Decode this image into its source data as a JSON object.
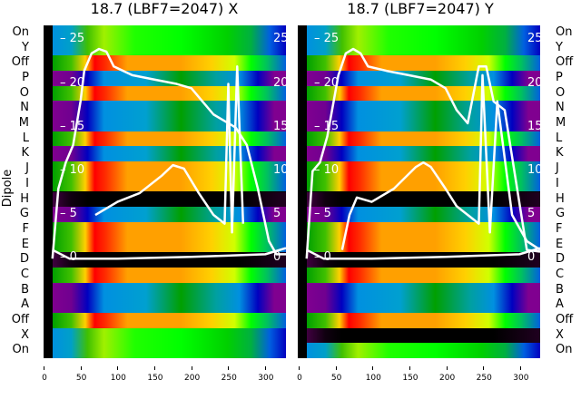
{
  "ylabel": "Dipole",
  "row_labels": [
    "On",
    "Y",
    "Off",
    "P",
    "O",
    "N",
    "M",
    "L",
    "K",
    "J",
    "I",
    "H",
    "G",
    "F",
    "E",
    "D",
    "C",
    "B",
    "A",
    "Off",
    "X",
    "On"
  ],
  "x_ticks": [
    "0",
    "50",
    "100",
    "150",
    "200",
    "250",
    "300"
  ],
  "y_ticks": [
    "25",
    "20",
    "15",
    "10",
    "5",
    "0"
  ],
  "chart_data": [
    {
      "type": "heatmap",
      "title": "18.7 (LBF7=2047) X",
      "xlim": [
        0,
        328
      ],
      "ylim": [
        -11.4,
        26.7
      ],
      "bands": [
        "green",
        "orange",
        "blue",
        "orange",
        "blue",
        "orange",
        "blue",
        "orange",
        "black",
        "blue",
        "orange",
        "black",
        "orange",
        "blue",
        "orange",
        "green"
      ],
      "band_rows": [
        2,
        1,
        1,
        1,
        2,
        1,
        1,
        2,
        1,
        1,
        2,
        1,
        1,
        2,
        1,
        2
      ],
      "series": [
        {
          "name": "outer",
          "x": [
            12,
            20,
            30,
            40,
            50,
            55,
            65,
            75,
            85,
            95,
            120,
            150,
            180,
            200,
            215,
            230,
            240,
            260,
            275,
            290,
            305,
            315,
            328
          ],
          "y": [
            0,
            8,
            11,
            13,
            18,
            21.5,
            23.5,
            24,
            23.7,
            22,
            21,
            20.5,
            20,
            19.5,
            18,
            16.5,
            16,
            15,
            13,
            8,
            2,
            0.5,
            0.5
          ]
        },
        {
          "name": "baseline",
          "x": [
            12,
            35,
            100,
            200,
            300,
            328
          ],
          "y": [
            1,
            0,
            0,
            0.2,
            0.5,
            1.2
          ]
        },
        {
          "name": "hump",
          "x": [
            70,
            100,
            130,
            160,
            175,
            190,
            210,
            230,
            245,
            250,
            255,
            262,
            270
          ],
          "y": [
            5,
            6.5,
            7.5,
            9.5,
            10.7,
            10.3,
            7.5,
            5,
            4,
            20,
            3,
            22,
            4
          ]
        }
      ]
    },
    {
      "type": "heatmap",
      "title": "18.7 (LBF7=2047) Y",
      "xlim": [
        0,
        328
      ],
      "ylim": [
        -11.4,
        26.7
      ],
      "bands": [
        "green",
        "orange",
        "blue",
        "orange",
        "blue",
        "orange",
        "blue",
        "orange",
        "black",
        "blue",
        "orange",
        "black",
        "orange",
        "blue",
        "orange",
        "black",
        "green"
      ],
      "band_rows": [
        2,
        1,
        1,
        1,
        2,
        1,
        1,
        2,
        1,
        1,
        2,
        1,
        1,
        2,
        1,
        1,
        1
      ],
      "series": [
        {
          "name": "outer",
          "x": [
            12,
            20,
            30,
            40,
            55,
            65,
            75,
            85,
            95,
            120,
            150,
            180,
            200,
            215,
            230,
            245,
            255,
            265,
            280,
            295,
            310,
            328
          ],
          "y": [
            0,
            10,
            11,
            14,
            21,
            23.5,
            24,
            23.5,
            22,
            21.5,
            21,
            20.5,
            19.5,
            17,
            15.5,
            22,
            22,
            18,
            17,
            9,
            1,
            0.8
          ]
        },
        {
          "name": "baseline",
          "x": [
            12,
            35,
            100,
            200,
            300,
            328
          ],
          "y": [
            1,
            0,
            0,
            0.2,
            0.5,
            1.2
          ]
        },
        {
          "name": "hump",
          "x": [
            60,
            70,
            80,
            100,
            130,
            160,
            170,
            180,
            200,
            215,
            230,
            245,
            250,
            260,
            270,
            290,
            310,
            328
          ],
          "y": [
            1,
            5,
            7,
            6.5,
            8,
            10.5,
            11,
            10.5,
            8,
            6,
            5,
            4,
            21,
            3,
            18,
            5,
            2,
            1
          ]
        }
      ]
    }
  ]
}
